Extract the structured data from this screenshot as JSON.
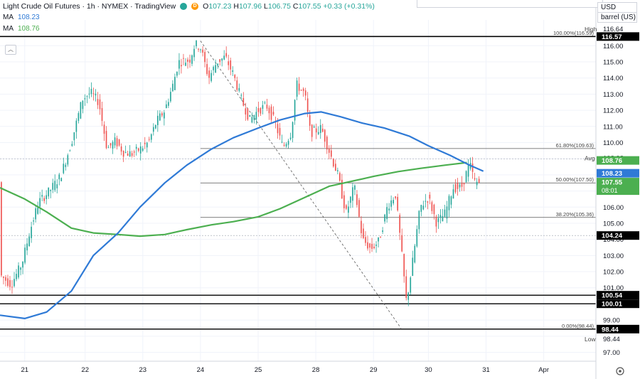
{
  "header": {
    "title": "Light Crude Oil Futures · 1h · NYMEX · TradingView",
    "open_label": "O",
    "open": "107.23",
    "high_label": "H",
    "high": "107.96",
    "low_label": "L",
    "low": "106.75",
    "close_label": "C",
    "close": "107.55",
    "change": "+0.33 (+0.31%)",
    "ma1_label": "MA",
    "ma1_value": "108.23",
    "ma2_label": "MA",
    "ma2_value": "108.76",
    "currency": "USD",
    "unit": "barrel (US)"
  },
  "colors": {
    "up": "#26a69a",
    "down": "#ef5350",
    "ma_blue": "#2f7ad6",
    "ma_green": "#4caf50"
  },
  "chart_data": {
    "type": "candlestick",
    "x_ticks": [
      {
        "label": "21",
        "x": 0.9
      },
      {
        "label": "22",
        "x": 3.1
      },
      {
        "label": "23",
        "x": 5.2
      },
      {
        "label": "24",
        "x": 7.3
      },
      {
        "label": "25",
        "x": 9.4
      },
      {
        "label": "28",
        "x": 11.5
      },
      {
        "label": "29",
        "x": 13.6
      },
      {
        "label": "30",
        "x": 15.6
      },
      {
        "label": "31",
        "x": 17.7
      },
      {
        "label": "Apr",
        "x": 19.8
      }
    ],
    "xlim": [
      0,
      21.7
    ],
    "ylim": [
      96.45,
      117.6
    ],
    "y_ticks": [
      97,
      98,
      99,
      100,
      101,
      102,
      103,
      104,
      105,
      106,
      107,
      108,
      109,
      110,
      111,
      112,
      113,
      114,
      115,
      116
    ],
    "y_tick_labels": [
      "97.00",
      "98.00",
      "99.00",
      "100.00",
      "101.00",
      "102.00",
      "103.00",
      "104.00",
      "105.00",
      "106.00",
      "107.00",
      "108.00",
      "109.00",
      "110.00",
      "111.00",
      "112.00",
      "113.00",
      "114.00",
      "115.00",
      "116.00"
    ],
    "ohlc_anchors": [
      [
        0.0,
        101.8
      ],
      [
        0.4,
        101.2
      ],
      [
        0.8,
        102.5
      ],
      [
        1.1,
        104.6
      ],
      [
        1.4,
        106.3
      ],
      [
        1.8,
        107.0
      ],
      [
        2.2,
        107.9
      ],
      [
        2.6,
        110.0
      ],
      [
        3.0,
        112.7
      ],
      [
        3.3,
        113.1
      ],
      [
        3.6,
        112.5
      ],
      [
        3.9,
        109.6
      ],
      [
        4.2,
        110.1
      ],
      [
        4.5,
        109.4
      ],
      [
        4.8,
        109.3
      ],
      [
        5.1,
        109.6
      ],
      [
        5.4,
        110.0
      ],
      [
        5.7,
        111.3
      ],
      [
        6.0,
        112.0
      ],
      [
        6.3,
        113.6
      ],
      [
        6.5,
        115.0
      ],
      [
        6.9,
        115.1
      ],
      [
        7.1,
        116.1
      ],
      [
        7.3,
        115.9
      ],
      [
        7.6,
        114.0
      ],
      [
        7.9,
        115.0
      ],
      [
        8.2,
        115.3
      ],
      [
        8.5,
        114.2
      ],
      [
        8.8,
        112.6
      ],
      [
        9.1,
        111.4
      ],
      [
        9.4,
        112.0
      ],
      [
        9.7,
        112.3
      ],
      [
        10.0,
        111.3
      ],
      [
        10.3,
        109.7
      ],
      [
        10.6,
        110.6
      ],
      [
        10.8,
        113.6
      ],
      [
        11.1,
        113.0
      ],
      [
        11.3,
        110.6
      ],
      [
        11.7,
        110.9
      ],
      [
        12.0,
        109.4
      ],
      [
        12.3,
        108.0
      ],
      [
        12.6,
        105.6
      ],
      [
        12.9,
        107.3
      ],
      [
        13.2,
        104.0
      ],
      [
        13.5,
        103.4
      ],
      [
        13.8,
        103.9
      ],
      [
        14.1,
        106.0
      ],
      [
        14.4,
        106.8
      ],
      [
        14.6,
        103.6
      ],
      [
        14.8,
        100.1
      ],
      [
        15.0,
        102.3
      ],
      [
        15.3,
        106.0
      ],
      [
        15.6,
        106.6
      ],
      [
        15.9,
        105.0
      ],
      [
        16.2,
        105.6
      ],
      [
        16.5,
        107.2
      ],
      [
        16.8,
        107.2
      ],
      [
        17.1,
        108.7
      ],
      [
        17.3,
        107.5
      ],
      [
        17.5,
        107.55
      ]
    ],
    "ma_blue": [
      [
        0.0,
        99.3
      ],
      [
        0.9,
        99.1
      ],
      [
        1.7,
        99.5
      ],
      [
        2.6,
        100.8
      ],
      [
        3.4,
        103.0
      ],
      [
        4.3,
        104.4
      ],
      [
        5.1,
        106.0
      ],
      [
        6.0,
        107.5
      ],
      [
        6.8,
        108.6
      ],
      [
        7.7,
        109.6
      ],
      [
        8.5,
        110.3
      ],
      [
        9.4,
        110.9
      ],
      [
        10.2,
        111.4
      ],
      [
        11.1,
        111.8
      ],
      [
        11.7,
        111.9
      ],
      [
        12.4,
        111.6
      ],
      [
        13.2,
        111.2
      ],
      [
        14.0,
        110.9
      ],
      [
        14.9,
        110.4
      ],
      [
        15.6,
        109.8
      ],
      [
        16.4,
        109.2
      ],
      [
        17.1,
        108.6
      ],
      [
        17.6,
        108.23
      ]
    ],
    "ma_green": [
      [
        0.0,
        107.2
      ],
      [
        0.9,
        106.5
      ],
      [
        1.7,
        105.7
      ],
      [
        2.6,
        104.7
      ],
      [
        3.4,
        104.4
      ],
      [
        4.3,
        104.3
      ],
      [
        5.1,
        104.2
      ],
      [
        6.0,
        104.3
      ],
      [
        6.8,
        104.6
      ],
      [
        7.7,
        104.9
      ],
      [
        8.5,
        105.1
      ],
      [
        9.4,
        105.4
      ],
      [
        10.2,
        105.9
      ],
      [
        11.1,
        106.6
      ],
      [
        12.0,
        107.3
      ],
      [
        12.8,
        107.6
      ],
      [
        13.6,
        107.9
      ],
      [
        14.5,
        108.2
      ],
      [
        15.3,
        108.4
      ],
      [
        16.2,
        108.6
      ],
      [
        17.0,
        108.76
      ]
    ],
    "fib_levels": [
      {
        "label": "100.00%(116.59)",
        "value": 116.59
      },
      {
        "label": "61.80%(109.63)",
        "value": 109.63
      },
      {
        "label": "50.00%(107.50)",
        "value": 107.5
      },
      {
        "label": "38.20%(105.36)",
        "value": 105.36
      },
      {
        "label": "0.00%(98.44)",
        "value": 98.44
      }
    ],
    "horizontal_lines": [
      116.57,
      100.54,
      100.01,
      98.44
    ],
    "dashed_trendline": [
      [
        7.3,
        116.3
      ],
      [
        14.6,
        98.5
      ]
    ],
    "price_labels": [
      {
        "label": "High",
        "value": "116.64",
        "kind": "text"
      },
      {
        "label": "",
        "value": "116.57",
        "kind": "black"
      },
      {
        "label": "Avg",
        "value": "108.98",
        "kind": "text"
      },
      {
        "label": "",
        "value": "108.76",
        "kind": "green"
      },
      {
        "label": "",
        "value": "108.23",
        "kind": "blue"
      },
      {
        "label": "",
        "value": "107.55",
        "kind": "green_last",
        "countdown": "08:01"
      },
      {
        "label": "",
        "value": "104.24",
        "kind": "black"
      },
      {
        "label": "",
        "value": "100.54",
        "kind": "black"
      },
      {
        "label": "",
        "value": "100.01",
        "kind": "black"
      },
      {
        "label": "",
        "value": "98.44",
        "kind": "black"
      },
      {
        "label": "Low",
        "value": "98.44",
        "kind": "text"
      }
    ]
  }
}
